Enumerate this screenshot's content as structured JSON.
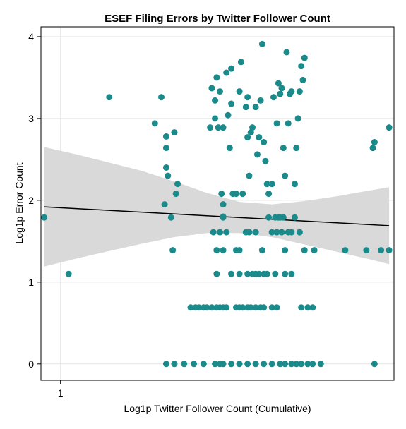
{
  "chart_data": {
    "type": "scatter",
    "title": "ESEF Filing Errors by Twitter Follower Count",
    "xlabel": "Log1p Twitter Follower Count (Cumulative)",
    "ylabel": "Log1p Error Count",
    "x_ticks": [
      1
    ],
    "y_ticks": [
      0,
      1,
      2,
      3,
      4
    ],
    "xlim": [
      0.88,
      3.05
    ],
    "ylim": [
      -0.2,
      4.12
    ],
    "grid": true,
    "legend": "none",
    "colors": {
      "points": "#1a8a8a",
      "fit_line": "#000000",
      "ci_band": "#d9d9d9",
      "grid": "#e5e5e5"
    },
    "series": [
      {
        "points": [
          [
            0.9,
            1.79
          ],
          [
            1.05,
            1.1
          ],
          [
            1.3,
            3.26
          ],
          [
            1.58,
            2.94
          ],
          [
            1.62,
            3.26
          ],
          [
            1.65,
            2.78
          ],
          [
            1.65,
            2.64
          ],
          [
            1.65,
            2.4
          ],
          [
            1.66,
            2.3
          ],
          [
            1.64,
            1.95
          ],
          [
            1.7,
            2.83
          ],
          [
            1.72,
            2.2
          ],
          [
            1.71,
            2.08
          ],
          [
            1.68,
            1.79
          ],
          [
            1.69,
            1.39
          ],
          [
            1.65,
            0.0
          ],
          [
            1.7,
            0.0
          ],
          [
            1.76,
            0.0
          ],
          [
            1.82,
            0.0
          ],
          [
            1.88,
            0.0
          ],
          [
            1.8,
            0.69
          ],
          [
            1.83,
            0.69
          ],
          [
            1.85,
            0.69
          ],
          [
            1.88,
            0.69
          ],
          [
            1.9,
            0.69
          ],
          [
            1.92,
            2.89
          ],
          [
            1.93,
            3.37
          ],
          [
            1.95,
            3.0
          ],
          [
            1.95,
            3.22
          ],
          [
            1.96,
            3.5
          ],
          [
            1.97,
            2.89
          ],
          [
            1.98,
            3.33
          ],
          [
            1.99,
            2.08
          ],
          [
            2.0,
            1.95
          ],
          [
            2.0,
            1.8
          ],
          [
            2.0,
            1.79
          ],
          [
            2.0,
            2.89
          ],
          [
            2.02,
            3.56
          ],
          [
            2.03,
            3.04
          ],
          [
            2.04,
            2.64
          ],
          [
            2.05,
            3.18
          ],
          [
            2.05,
            3.61
          ],
          [
            2.06,
            2.08
          ],
          [
            2.08,
            2.08
          ],
          [
            2.1,
            3.33
          ],
          [
            2.11,
            3.69
          ],
          [
            2.12,
            2.08
          ],
          [
            2.14,
            3.14
          ],
          [
            2.15,
            3.26
          ],
          [
            2.15,
            2.77
          ],
          [
            2.16,
            2.3
          ],
          [
            2.17,
            2.83
          ],
          [
            2.18,
            2.89
          ],
          [
            2.2,
            3.14
          ],
          [
            2.21,
            2.56
          ],
          [
            2.22,
            2.77
          ],
          [
            2.23,
            3.22
          ],
          [
            2.24,
            3.91
          ],
          [
            2.25,
            2.71
          ],
          [
            2.26,
            2.48
          ],
          [
            2.27,
            2.2
          ],
          [
            2.28,
            2.08
          ],
          [
            2.3,
            2.2
          ],
          [
            2.31,
            3.26
          ],
          [
            2.33,
            2.94
          ],
          [
            2.34,
            3.43
          ],
          [
            2.35,
            3.3
          ],
          [
            2.36,
            3.37
          ],
          [
            2.37,
            2.64
          ],
          [
            2.38,
            2.3
          ],
          [
            2.39,
            3.81
          ],
          [
            2.4,
            2.94
          ],
          [
            2.41,
            3.3
          ],
          [
            2.42,
            3.33
          ],
          [
            2.44,
            2.2
          ],
          [
            2.45,
            2.64
          ],
          [
            2.46,
            3.0
          ],
          [
            2.47,
            3.33
          ],
          [
            2.48,
            3.64
          ],
          [
            2.49,
            3.47
          ],
          [
            2.5,
            3.74
          ],
          [
            1.94,
            1.61
          ],
          [
            1.96,
            1.39
          ],
          [
            1.98,
            1.61
          ],
          [
            2.0,
            1.39
          ],
          [
            2.02,
            1.61
          ],
          [
            2.08,
            1.39
          ],
          [
            2.1,
            1.39
          ],
          [
            2.14,
            1.61
          ],
          [
            2.16,
            1.61
          ],
          [
            2.2,
            1.61
          ],
          [
            2.24,
            1.39
          ],
          [
            2.28,
            1.79
          ],
          [
            2.3,
            1.61
          ],
          [
            2.32,
            1.79
          ],
          [
            2.33,
            1.61
          ],
          [
            2.34,
            1.79
          ],
          [
            2.35,
            1.79
          ],
          [
            2.36,
            1.61
          ],
          [
            2.37,
            1.79
          ],
          [
            2.38,
            1.39
          ],
          [
            2.4,
            1.61
          ],
          [
            2.42,
            1.61
          ],
          [
            2.44,
            1.79
          ],
          [
            2.47,
            1.61
          ],
          [
            2.5,
            1.39
          ],
          [
            2.56,
            1.39
          ],
          [
            2.75,
            1.39
          ],
          [
            2.88,
            1.39
          ],
          [
            1.96,
            1.1
          ],
          [
            2.05,
            1.1
          ],
          [
            2.1,
            1.1
          ],
          [
            2.15,
            1.1
          ],
          [
            2.18,
            1.1
          ],
          [
            2.2,
            1.1
          ],
          [
            2.22,
            1.1
          ],
          [
            2.25,
            1.1
          ],
          [
            2.27,
            1.1
          ],
          [
            2.32,
            1.1
          ],
          [
            2.38,
            1.1
          ],
          [
            2.42,
            1.1
          ],
          [
            1.93,
            0.69
          ],
          [
            1.96,
            0.69
          ],
          [
            1.98,
            0.69
          ],
          [
            2.0,
            0.69
          ],
          [
            2.02,
            0.69
          ],
          [
            2.08,
            0.69
          ],
          [
            2.1,
            0.69
          ],
          [
            2.12,
            0.69
          ],
          [
            2.15,
            0.69
          ],
          [
            2.17,
            0.69
          ],
          [
            2.2,
            0.69
          ],
          [
            2.23,
            0.69
          ],
          [
            2.25,
            0.69
          ],
          [
            2.3,
            0.69
          ],
          [
            2.33,
            0.69
          ],
          [
            2.48,
            0.69
          ],
          [
            2.52,
            0.69
          ],
          [
            2.55,
            0.69
          ],
          [
            1.95,
            0.0
          ],
          [
            1.98,
            0.0
          ],
          [
            2.0,
            0.0
          ],
          [
            2.05,
            0.0
          ],
          [
            2.1,
            0.0
          ],
          [
            2.15,
            0.0
          ],
          [
            2.2,
            0.0
          ],
          [
            2.25,
            0.0
          ],
          [
            2.3,
            0.0
          ],
          [
            2.35,
            0.0
          ],
          [
            2.38,
            0.0
          ],
          [
            2.42,
            0.0
          ],
          [
            2.45,
            0.0
          ],
          [
            2.48,
            0.0
          ],
          [
            2.52,
            0.0
          ],
          [
            2.55,
            0.0
          ],
          [
            2.6,
            0.0
          ],
          [
            2.92,
            2.64
          ],
          [
            2.93,
            2.71
          ],
          [
            2.97,
            1.39
          ],
          [
            2.93,
            0.0
          ],
          [
            3.02,
            2.89
          ],
          [
            3.02,
            1.39
          ]
        ]
      }
    ],
    "fit_line": {
      "x": [
        0.9,
        3.02
      ],
      "y": [
        1.92,
        1.69
      ]
    },
    "ci_band": {
      "x": [
        0.9,
        1.1,
        1.3,
        1.5,
        1.7,
        1.9,
        2.1,
        2.3,
        2.5,
        2.7,
        2.9,
        3.02
      ],
      "lower": [
        1.19,
        1.29,
        1.38,
        1.47,
        1.55,
        1.6,
        1.6,
        1.55,
        1.46,
        1.37,
        1.28,
        1.22
      ],
      "upper": [
        2.65,
        2.56,
        2.46,
        2.36,
        2.23,
        2.09,
        1.98,
        1.95,
        1.99,
        2.05,
        2.12,
        2.16
      ]
    }
  }
}
